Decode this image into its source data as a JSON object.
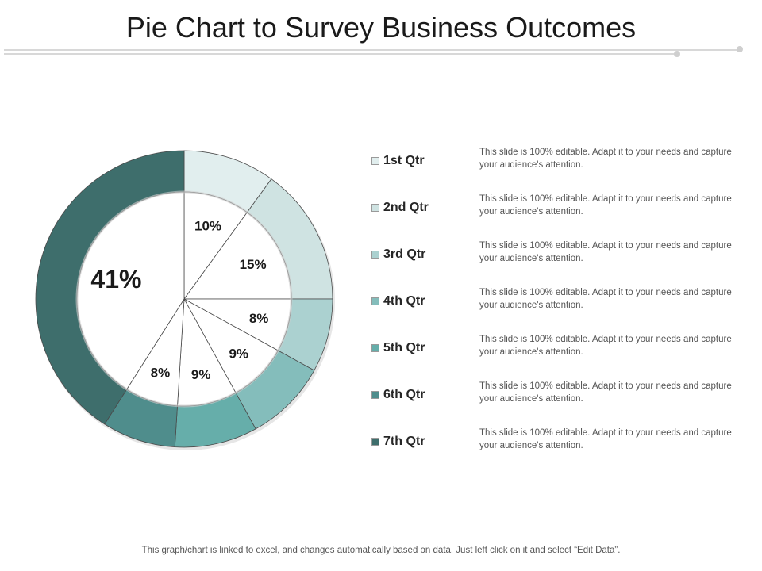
{
  "page": {
    "title": "Pie Chart to Survey Business Outcomes"
  },
  "chart_data": {
    "type": "pie",
    "title": "Pie Chart to Survey Business Outcomes",
    "categories": [
      "1st Qtr",
      "2nd Qtr",
      "3rd Qtr",
      "4th Qtr",
      "5th Qtr",
      "6th Qtr",
      "7th Qtr"
    ],
    "values": [
      10,
      15,
      8,
      9,
      9,
      8,
      41
    ],
    "data_labels": [
      "10%",
      "15%",
      "8%",
      "9%",
      "9%",
      "8%",
      "41%"
    ],
    "colors": [
      "#e1eeee",
      "#cfe3e2",
      "#abd1d0",
      "#84bdbb",
      "#66aeaa",
      "#4f8d8c",
      "#3e6e6c"
    ],
    "legend_position": "right"
  },
  "legend": {
    "description": "This slide is 100% editable. Adapt it to your needs and capture your audience's attention."
  },
  "footer": {
    "note": "This graph/chart is linked to excel, and changes automatically based on data. Just left click on it and select “Edit Data”."
  }
}
